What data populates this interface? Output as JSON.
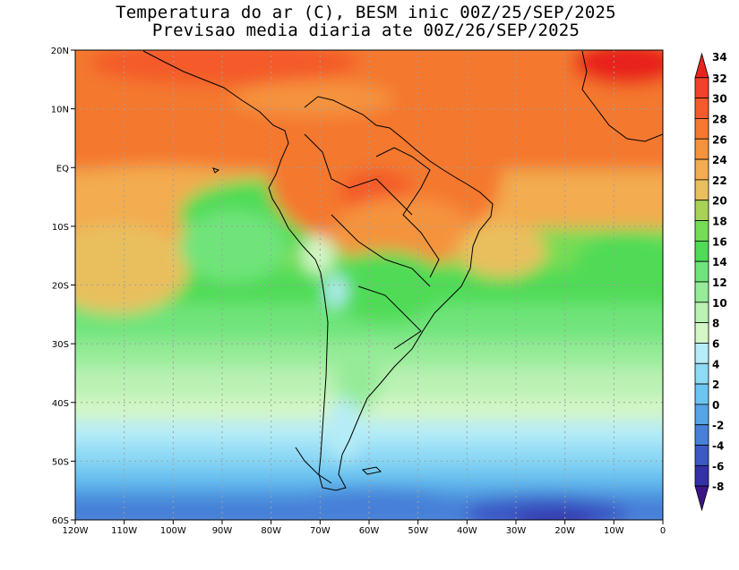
{
  "title": {
    "line1": "Temperatura do ar (C), BESM inic 00Z/25/SEP/2025",
    "line2": "Previsao media diaria ate 00Z/26/SEP/2025"
  },
  "map": {
    "region": "South America and South Atlantic",
    "lon_range": [
      -120,
      0
    ],
    "lat_range": [
      -60,
      20
    ],
    "x_ticks": [
      "120W",
      "110W",
      "100W",
      "90W",
      "80W",
      "70W",
      "60W",
      "50W",
      "40W",
      "30W",
      "20W",
      "10W",
      "0"
    ],
    "y_ticks": [
      "20N",
      "10N",
      "EQ",
      "10S",
      "20S",
      "30S",
      "40S",
      "50S",
      "60S"
    ],
    "grid": "dotted, every 10 degrees"
  },
  "colorbar": {
    "unit": "C",
    "labels": [
      "34",
      "32",
      "30",
      "28",
      "26",
      "24",
      "22",
      "20",
      "18",
      "16",
      "14",
      "12",
      "10",
      "8",
      "6",
      "4",
      "2",
      "0",
      "-2",
      "-4",
      "-6",
      "-8"
    ],
    "colors": [
      "#e8241e",
      "#f0412a",
      "#f45a2c",
      "#f4782f",
      "#f5933c",
      "#f3ac4f",
      "#e9bf5d",
      "#a8d256",
      "#77dc55",
      "#4fdb57",
      "#6fe47a",
      "#95eb98",
      "#b9f2b3",
      "#d4f6c6",
      "#b5ecf7",
      "#8fdaf5",
      "#6cc5f0",
      "#55a5e6",
      "#4680d8",
      "#3b59c5",
      "#3430a8",
      "#3c1488"
    ]
  },
  "colors": {
    "coast": "#000000",
    "grid": "#a0a0a0"
  }
}
